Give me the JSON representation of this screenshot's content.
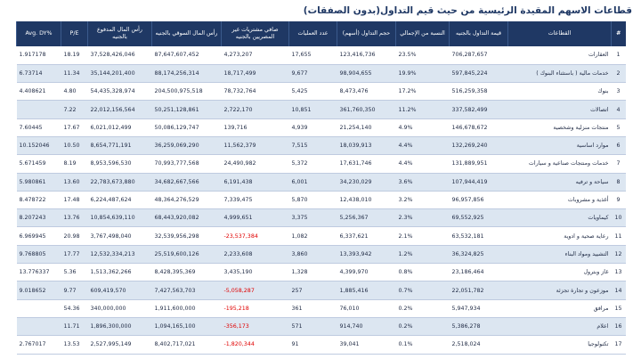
{
  "title": "قطاعات الاسهم المقيدة الرئيسية من حيث قيم التداول(بدون الصفقات)",
  "columns": [
    "#",
    "القطاعات",
    "قيمة التداول بالجنيه",
    "النسبة من الإجمالي",
    "حجم التداول (أسهم)",
    "عدد العمليات",
    "صافي مشتريات غير المصريين بالجنيه",
    "رأس المال السوقي بالجنيه",
    "رأس المال المدفوع بالجنيه",
    "P/E",
    "%Avg. DY"
  ],
  "rows": [
    {
      "idx": "1",
      "sector": "العقارات",
      "value": "706,287,657",
      "pct": "23.5%",
      "volume": "123,416,736",
      "trades": "17,655",
      "net_foreign": "4,273,207",
      "mcap": "87,647,607,452",
      "paid_cap": "37,528,426,046",
      "pe": "18.19",
      "dy": "1.917178"
    },
    {
      "idx": "2",
      "sector": "خدمات مالية ( باستثناء البنوك )",
      "value": "597,845,224",
      "pct": "19.9%",
      "volume": "98,904,655",
      "trades": "9,677",
      "net_foreign": "18,717,499",
      "mcap": "88,174,256,314",
      "paid_cap": "35,144,201,400",
      "pe": "11.34",
      "dy": "6.73714"
    },
    {
      "idx": "3",
      "sector": "بنوك",
      "value": "516,259,358",
      "pct": "17.2%",
      "volume": "8,473,476",
      "trades": "5,425",
      "net_foreign": "78,732,764",
      "mcap": "204,500,975,518",
      "paid_cap": "54,435,328,974",
      "pe": "4.80",
      "dy": "4.408621"
    },
    {
      "idx": "4",
      "sector": "اتصالات",
      "value": "337,582,499",
      "pct": "11.2%",
      "volume": "361,760,350",
      "trades": "10,851",
      "net_foreign": "2,722,170",
      "mcap": "50,251,128,861",
      "paid_cap": "22,012,156,564",
      "pe": "7.22",
      "dy": ""
    },
    {
      "idx": "5",
      "sector": "منتجات منزلية وشخصية",
      "value": "146,678,672",
      "pct": "4.9%",
      "volume": "21,254,140",
      "trades": "4,939",
      "net_foreign": "139,716",
      "mcap": "50,086,129,747",
      "paid_cap": "6,021,012,499",
      "pe": "17.67",
      "dy": "7.60445"
    },
    {
      "idx": "6",
      "sector": "موارد اساسية",
      "value": "132,269,240",
      "pct": "4.4%",
      "volume": "18,039,913",
      "trades": "7,515",
      "net_foreign": "11,562,379",
      "mcap": "36,259,069,290",
      "paid_cap": "8,654,771,191",
      "pe": "10.50",
      "dy": "10.152046"
    },
    {
      "idx": "7",
      "sector": "خدمات ومنتجات صناعية و سيارات",
      "value": "131,889,951",
      "pct": "4.4%",
      "volume": "17,631,746",
      "trades": "5,372",
      "net_foreign": "24,490,982",
      "mcap": "70,993,777,568",
      "paid_cap": "8,953,596,530",
      "pe": "8.19",
      "dy": "5.671459"
    },
    {
      "idx": "8",
      "sector": "سياحة و ترفيه",
      "value": "107,944,419",
      "pct": "3.6%",
      "volume": "34,230,029",
      "trades": "6,001",
      "net_foreign": "6,191,438",
      "mcap": "34,682,667,566",
      "paid_cap": "22,783,673,880",
      "pe": "13.60",
      "dy": "5.980861"
    },
    {
      "idx": "9",
      "sector": "أغذية و مشروبات",
      "value": "96,957,856",
      "pct": "3.2%",
      "volume": "12,438,010",
      "trades": "5,870",
      "net_foreign": "7,339,475",
      "mcap": "48,364,276,529",
      "paid_cap": "6,224,487,624",
      "pe": "17.48",
      "dy": "8.478722"
    },
    {
      "idx": "10",
      "sector": "كيماويات",
      "value": "69,552,925",
      "pct": "2.3%",
      "volume": "5,256,367",
      "trades": "3,375",
      "net_foreign": "4,999,651",
      "mcap": "68,443,920,082",
      "paid_cap": "10,854,639,110",
      "pe": "13.76",
      "dy": "8.207243"
    },
    {
      "idx": "11",
      "sector": "رعاية صحية و ادوية",
      "value": "63,532,181",
      "pct": "2.1%",
      "volume": "6,337,621",
      "trades": "1,082",
      "net_foreign": "-23,537,384",
      "mcap": "32,539,956,298",
      "paid_cap": "3,767,498,040",
      "pe": "20.98",
      "dy": "6.969945",
      "neg": true
    },
    {
      "idx": "12",
      "sector": "التشييد ومواد البناء",
      "value": "36,324,825",
      "pct": "1.2%",
      "volume": "13,393,942",
      "trades": "3,860",
      "net_foreign": "2,233,608",
      "mcap": "25,519,600,126",
      "paid_cap": "12,532,334,213",
      "pe": "17.77",
      "dy": "9.768805"
    },
    {
      "idx": "13",
      "sector": "غاز وبترول",
      "value": "23,186,464",
      "pct": "0.8%",
      "volume": "4,399,970",
      "trades": "1,328",
      "net_foreign": "3,435,190",
      "mcap": "8,428,395,369",
      "paid_cap": "1,513,362,266",
      "pe": "5.36",
      "dy": "13.776337"
    },
    {
      "idx": "14",
      "sector": "موزعون و تجارة تجزئة",
      "value": "22,051,782",
      "pct": "0.7%",
      "volume": "1,885,416",
      "trades": "257",
      "net_foreign": "-5,058,287",
      "mcap": "7,427,563,703",
      "paid_cap": "609,419,570",
      "pe": "9.77",
      "dy": "9.018652",
      "neg": true
    },
    {
      "idx": "15",
      "sector": "مرافق",
      "value": "5,947,934",
      "pct": "0.2%",
      "volume": "76,010",
      "trades": "361",
      "net_foreign": "-195,218",
      "mcap": "1,911,600,000",
      "paid_cap": "340,000,000",
      "pe": "54.36",
      "dy": "",
      "neg": true
    },
    {
      "idx": "16",
      "sector": "اعلام",
      "value": "5,386,278",
      "pct": "0.2%",
      "volume": "914,740",
      "trades": "571",
      "net_foreign": "-356,173",
      "mcap": "1,094,165,100",
      "paid_cap": "1,896,300,000",
      "pe": "11.71",
      "dy": "",
      "neg": true
    },
    {
      "idx": "17",
      "sector": "تكنولوجيا",
      "value": "2,518,024",
      "pct": "0.1%",
      "volume": "39,041",
      "trades": "91",
      "net_foreign": "-1,820,344",
      "mcap": "8,402,717,021",
      "paid_cap": "2,527,995,149",
      "pe": "13.53",
      "dy": "2.767017",
      "neg": true
    }
  ],
  "colors": {
    "header_bg": "#1f3864",
    "alt_row": "#dce6f1",
    "negative": "#e00000"
  }
}
